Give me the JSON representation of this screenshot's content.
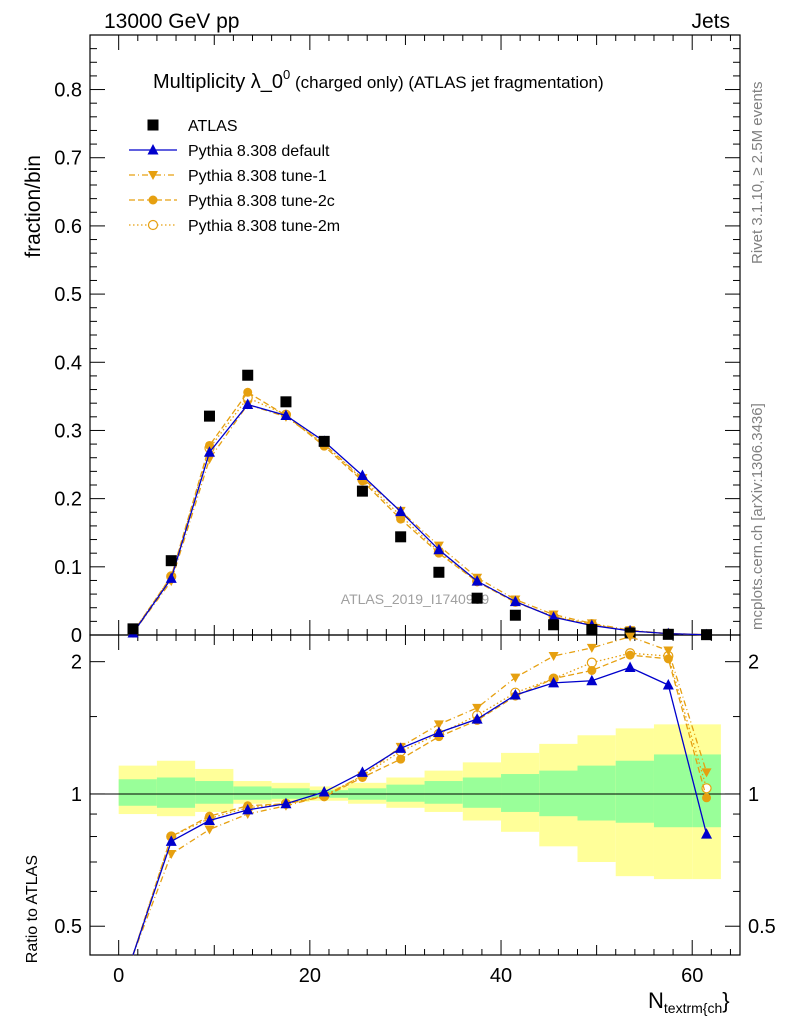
{
  "header": {
    "left": "13000 GeV pp",
    "right": "Jets"
  },
  "title": {
    "main": "Multiplicity λ_0",
    "sup": "0",
    "suffix": " (charged only) (ATLAS jet fragmentation)"
  },
  "side_labels": {
    "rivet": "Rivet 3.1.10, ≥ 2.5M events",
    "mcplots": "mcplots.cern.ch [arXiv:1306.3436]"
  },
  "watermark": "ATLAS_2019_I1740909",
  "colors": {
    "data": "#000000",
    "default": "#0000cc",
    "tunes": "#e6a010",
    "band_inner": "#99ff99",
    "band_outer": "#ffff99"
  },
  "chart_data": [
    {
      "type": "scatter",
      "panel": "main",
      "ylabel": "fraction/bin",
      "ylim": [
        0,
        0.88
      ],
      "yticks": [
        0,
        0.1,
        0.2,
        0.3,
        0.4,
        0.5,
        0.6,
        0.7,
        0.8
      ],
      "xlim": [
        -3,
        65
      ],
      "x": [
        1.5,
        5.5,
        9.5,
        13.5,
        17.5,
        21.5,
        25.5,
        29.5,
        33.5,
        37.5,
        41.5,
        45.5,
        49.5,
        53.5,
        57.5,
        61.5
      ],
      "legend": [
        "ATLAS",
        "Pythia 8.308 default",
        "Pythia 8.308 tune-1",
        "Pythia 8.308 tune-2c",
        "Pythia 8.308 tune-2m"
      ],
      "series": [
        {
          "name": "ATLAS",
          "values": [
            0.009,
            0.109,
            0.321,
            0.381,
            0.342,
            0.284,
            0.211,
            0.144,
            0.092,
            0.054,
            0.029,
            0.015,
            0.008,
            0.003,
            0.001,
            0.0005
          ]
        },
        {
          "name": "Pythia 8.308 default",
          "values": [
            0.003,
            0.083,
            0.268,
            0.338,
            0.322,
            0.284,
            0.234,
            0.181,
            0.125,
            0.079,
            0.049,
            0.026,
            0.014,
            0.006,
            0.002,
            0.0004
          ]
        },
        {
          "name": "Pythia 8.308 tune-1",
          "values": [
            0.003,
            0.079,
            0.258,
            0.338,
            0.32,
            0.28,
            0.23,
            0.182,
            0.131,
            0.084,
            0.052,
            0.03,
            0.017,
            0.007,
            0.002,
            0.0005
          ]
        },
        {
          "name": "Pythia 8.308 tune-2c",
          "values": [
            0.004,
            0.086,
            0.278,
            0.356,
            0.322,
            0.277,
            0.226,
            0.17,
            0.12,
            0.078,
            0.048,
            0.027,
            0.015,
            0.006,
            0.002,
            0.0005
          ]
        },
        {
          "name": "Pythia 8.308 tune-2m",
          "values": [
            0.004,
            0.086,
            0.274,
            0.348,
            0.323,
            0.28,
            0.228,
            0.175,
            0.122,
            0.079,
            0.049,
            0.027,
            0.016,
            0.006,
            0.002,
            0.0005
          ]
        }
      ]
    },
    {
      "type": "line",
      "panel": "ratio",
      "ylabel": "Ratio to ATLAS",
      "xlabel": "N",
      "xlabel_sub": "textrm{ch",
      "xlabel_tail": "}",
      "scale": "log",
      "ylim": [
        0.43,
        2.3
      ],
      "yticks": [
        0.5,
        1,
        2
      ],
      "xticks": [
        0,
        20,
        40,
        60
      ],
      "xlim": [
        -3,
        65
      ],
      "x": [
        1.5,
        5.5,
        9.5,
        13.5,
        17.5,
        21.5,
        25.5,
        29.5,
        33.5,
        37.5,
        41.5,
        45.5,
        49.5,
        53.5,
        57.5,
        61.5
      ],
      "bins": [
        0,
        4,
        8,
        12,
        16,
        20,
        24,
        28,
        32,
        36,
        40,
        44,
        48,
        52,
        56,
        60,
        63
      ],
      "band_inner": [
        [
          0.94,
          1.08
        ],
        [
          0.93,
          1.09
        ],
        [
          0.95,
          1.07
        ],
        [
          0.97,
          1.04
        ],
        [
          0.975,
          1.03
        ],
        [
          0.98,
          1.02
        ],
        [
          0.97,
          1.03
        ],
        [
          0.96,
          1.05
        ],
        [
          0.95,
          1.07
        ],
        [
          0.93,
          1.09
        ],
        [
          0.91,
          1.11
        ],
        [
          0.89,
          1.13
        ],
        [
          0.87,
          1.16
        ],
        [
          0.86,
          1.19
        ],
        [
          0.84,
          1.23
        ],
        [
          0.84,
          1.23
        ]
      ],
      "band_outer": [
        [
          0.9,
          1.16
        ],
        [
          0.89,
          1.19
        ],
        [
          0.91,
          1.14
        ],
        [
          0.95,
          1.07
        ],
        [
          0.96,
          1.06
        ],
        [
          0.965,
          1.04
        ],
        [
          0.95,
          1.06
        ],
        [
          0.93,
          1.09
        ],
        [
          0.91,
          1.13
        ],
        [
          0.87,
          1.18
        ],
        [
          0.82,
          1.24
        ],
        [
          0.76,
          1.3
        ],
        [
          0.7,
          1.36
        ],
        [
          0.65,
          1.41
        ],
        [
          0.64,
          1.44
        ],
        [
          0.64,
          1.44
        ]
      ],
      "series": [
        {
          "name": "Pythia 8.308 default",
          "values": [
            0.36,
            0.78,
            0.87,
            0.92,
            0.95,
            1.01,
            1.12,
            1.27,
            1.38,
            1.48,
            1.68,
            1.79,
            1.81,
            1.94,
            1.77,
            0.81
          ]
        },
        {
          "name": "Pythia 8.308 tune-1",
          "values": [
            0.4,
            0.73,
            0.83,
            0.9,
            0.94,
            0.99,
            1.1,
            1.28,
            1.44,
            1.57,
            1.84,
            2.06,
            2.15,
            2.28,
            2.12,
            1.12
          ]
        },
        {
          "name": "Pythia 8.308 tune-2c",
          "values": [
            0.42,
            0.8,
            0.89,
            0.94,
            0.95,
            0.985,
            1.09,
            1.2,
            1.35,
            1.47,
            1.67,
            1.83,
            1.91,
            2.07,
            2.03,
            0.98
          ]
        },
        {
          "name": "Pythia 8.308 tune-2m",
          "values": [
            0.4,
            0.8,
            0.88,
            0.93,
            0.95,
            0.99,
            1.1,
            1.25,
            1.37,
            1.51,
            1.7,
            1.83,
            1.99,
            2.09,
            2.06,
            1.03
          ]
        }
      ]
    }
  ]
}
